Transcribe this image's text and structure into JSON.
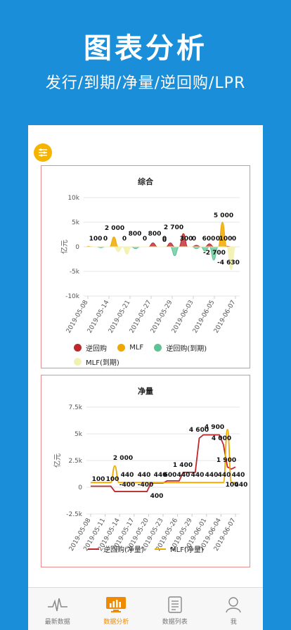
{
  "header": {
    "title": "图表分析",
    "subtitle": "发行/到期/净量/逆回购/LPR"
  },
  "colors": {
    "background": "#1b8ed9",
    "reverse_repo": "#c0272d",
    "mlf": "#f0a800",
    "reverse_repo_due": "#5cc494",
    "mlf_due": "#f2f2b0",
    "active_tab": "#f08a00"
  },
  "fab": {
    "icon": "filter-sliders-icon"
  },
  "charts": {
    "combined": {
      "title": "综合",
      "ylabel": "亿元",
      "legend": [
        "逆回购",
        "MLF",
        "逆回购(到期)",
        "MLF(到期)"
      ]
    },
    "net": {
      "title": "净量",
      "ylabel": "亿元",
      "legend": [
        "逆回购(净量)",
        "MLF(净量)"
      ]
    }
  },
  "chart_data": [
    {
      "type": "area",
      "title": "综合",
      "ylabel": "亿元",
      "ylim": [
        -10000,
        10000
      ],
      "yticks": [
        "10k",
        "5k",
        "0",
        "-5k",
        "-10k"
      ],
      "x_ticks": [
        "2019-05-08",
        "2019-05-14",
        "2019-05-21",
        "2019-05-27",
        "2019-05-29",
        "2019-06-03",
        "2019-06-05",
        "2019-06-07"
      ],
      "data_labels": [
        "100",
        "0",
        "2 000",
        "0",
        "800",
        "0",
        "800",
        "0",
        "2 700",
        "0",
        "300",
        "0",
        "600",
        "0",
        "-2 700",
        "5 000",
        "100",
        "0",
        "-4 630"
      ],
      "series": [
        {
          "name": "逆回购",
          "values": [
            0,
            0,
            0,
            0,
            0,
            0,
            0,
            0,
            0,
            0,
            0,
            0,
            0,
            0,
            0,
            800,
            0,
            0,
            0,
            800,
            0,
            0,
            2700,
            0,
            0,
            300,
            0,
            0,
            600,
            0,
            0,
            0,
            100,
            0,
            0
          ]
        },
        {
          "name": "MLF",
          "values": [
            100,
            0,
            0,
            0,
            0,
            0,
            2000,
            0,
            0,
            0,
            0,
            0,
            0,
            0,
            0,
            0,
            0,
            0,
            0,
            0,
            0,
            0,
            0,
            0,
            0,
            0,
            0,
            0,
            0,
            0,
            0,
            5000,
            0,
            0,
            0
          ]
        },
        {
          "name": "逆回购(到期)",
          "values": [
            0,
            0,
            0,
            -200,
            0,
            0,
            0,
            0,
            0,
            0,
            0,
            -400,
            0,
            0,
            0,
            0,
            0,
            0,
            0,
            0,
            -1800,
            0,
            0,
            0,
            0,
            -400,
            0,
            -900,
            0,
            -2700,
            0,
            0,
            0,
            0,
            0
          ]
        },
        {
          "name": "MLF(到期)",
          "values": [
            0,
            0,
            0,
            0,
            0,
            0,
            0,
            -1000,
            0,
            -1500,
            0,
            0,
            0,
            0,
            0,
            0,
            0,
            0,
            0,
            0,
            0,
            0,
            0,
            0,
            0,
            0,
            0,
            0,
            0,
            0,
            0,
            0,
            0,
            -4630,
            0
          ]
        }
      ]
    },
    {
      "type": "line",
      "title": "净量",
      "ylabel": "亿元",
      "ylim": [
        -2500,
        7500
      ],
      "yticks": [
        "7.5k",
        "5k",
        "2.5k",
        "0",
        "-2.5k"
      ],
      "x_ticks": [
        "2019-05-08",
        "2019-05-11",
        "2019-05-14",
        "2019-05-17",
        "2019-05-20",
        "2019-05-23",
        "2019-05-26",
        "2019-05-29",
        "2019-06-01",
        "2019-06-04",
        "2019-06-07"
      ],
      "data_labels": [
        "100",
        "100",
        "2 000",
        "440",
        "-400",
        "440",
        "-400",
        "440",
        "400",
        "600",
        "440",
        "1 400",
        "440",
        "4 600",
        "440",
        "4 900",
        "440",
        "4 000",
        "440",
        "1 900",
        "100",
        "440"
      ],
      "series": [
        {
          "name": "逆回购(净量)",
          "values": [
            100,
            100,
            100,
            100,
            100,
            100,
            -400,
            -400,
            -400,
            -400,
            -400,
            -400,
            -400,
            -400,
            -400,
            400,
            400,
            400,
            400,
            600,
            600,
            600,
            600,
            1400,
            1400,
            1400,
            1400,
            4600,
            4900,
            4900,
            4900,
            4900,
            4900,
            4000,
            1900,
            1700,
            1900
          ]
        },
        {
          "name": "MLF(净量)",
          "values": [
            440,
            440,
            440,
            440,
            440,
            440,
            2000,
            440,
            440,
            440,
            440,
            440,
            440,
            440,
            440,
            440,
            440,
            440,
            440,
            440,
            440,
            440,
            440,
            440,
            440,
            440,
            440,
            440,
            440,
            440,
            440,
            440,
            440,
            440,
            5400,
            440,
            440
          ]
        }
      ]
    }
  ],
  "tabbar": [
    {
      "label": "最新数据",
      "icon": "pulse-icon"
    },
    {
      "label": "数据分析",
      "icon": "monitor-chart-icon"
    },
    {
      "label": "数据列表",
      "icon": "document-list-icon"
    },
    {
      "label": "我",
      "icon": "user-icon"
    }
  ]
}
